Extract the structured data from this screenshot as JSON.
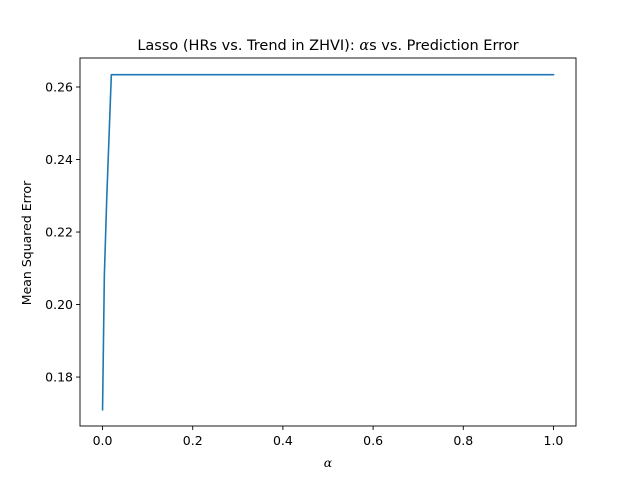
{
  "chart_data": {
    "type": "line",
    "title": "Lasso (HRs vs. Trend in ZHVI): αs vs. Prediction Error",
    "xlabel": "α",
    "ylabel": "Mean Squared Error",
    "xlim": [
      -0.05,
      1.05
    ],
    "ylim": [
      0.1665,
      0.268
    ],
    "xticks": [
      0.0,
      0.2,
      0.4,
      0.6,
      0.8,
      1.0
    ],
    "xtick_labels": [
      "0.0",
      "0.2",
      "0.4",
      "0.6",
      "0.8",
      "1.0"
    ],
    "yticks": [
      0.18,
      0.2,
      0.22,
      0.24,
      0.26
    ],
    "ytick_labels": [
      "0.18",
      "0.20",
      "0.22",
      "0.24",
      "0.26"
    ],
    "grid": false,
    "series": [
      {
        "name": "MSE",
        "color": "#1f77b4",
        "x": [
          0.0,
          0.004,
          0.0095,
          0.0195,
          1.0
        ],
        "y": [
          0.171,
          0.208,
          0.23,
          0.2634,
          0.2634
        ]
      }
    ]
  }
}
